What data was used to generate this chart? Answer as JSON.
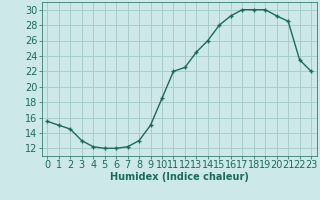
{
  "x": [
    0,
    1,
    2,
    3,
    4,
    5,
    6,
    7,
    8,
    9,
    10,
    11,
    12,
    13,
    14,
    15,
    16,
    17,
    18,
    19,
    20,
    21,
    22,
    23
  ],
  "y": [
    15.5,
    15.0,
    14.5,
    13.0,
    12.2,
    12.0,
    12.0,
    12.2,
    13.0,
    15.0,
    18.5,
    22.0,
    22.5,
    24.5,
    26.0,
    28.0,
    29.2,
    30.0,
    30.0,
    30.0,
    29.2,
    28.5,
    23.5,
    22.0
  ],
  "line_color": "#1a6b5a",
  "marker": "+",
  "bg_color": "#cce8e8",
  "grid_color": "#a8cccc",
  "xlabel": "Humidex (Indice chaleur)",
  "ylabel": "",
  "ylim": [
    11,
    31
  ],
  "xlim": [
    -0.5,
    23.5
  ],
  "yticks": [
    12,
    14,
    16,
    18,
    20,
    22,
    24,
    26,
    28,
    30
  ],
  "xticks": [
    0,
    1,
    2,
    3,
    4,
    5,
    6,
    7,
    8,
    9,
    10,
    11,
    12,
    13,
    14,
    15,
    16,
    17,
    18,
    19,
    20,
    21,
    22,
    23
  ],
  "axis_color": "#1a6b5a",
  "font_size_xlabel": 7,
  "font_size_ticks": 7,
  "line_width": 1.0,
  "marker_size": 3.5
}
